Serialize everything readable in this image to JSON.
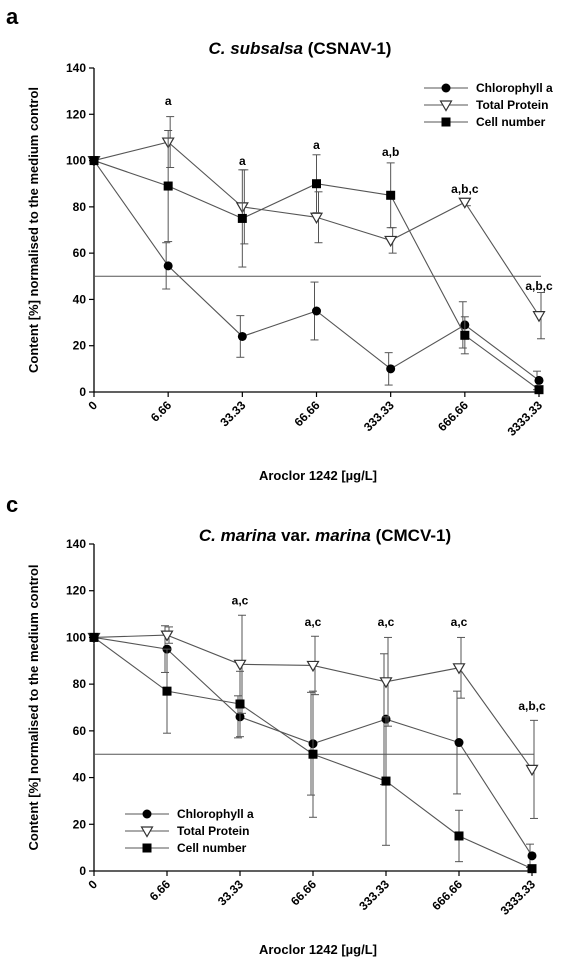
{
  "figure": {
    "panels": [
      {
        "letter": "a",
        "title_italic": "C. subsalsa",
        "title_rest": " (CSNAV-1)",
        "legend_position": "top-right"
      },
      {
        "letter": "c",
        "title_italic": "C. marina",
        "title_mid": " var. ",
        "title_italic2": "marina",
        "title_rest": " (CMCV-1)",
        "legend_position": "bottom-left"
      }
    ]
  },
  "chart_data": [
    {
      "type": "line",
      "title": "C. subsalsa (CSNAV-1)",
      "xlabel": "Aroclor 1242 [µg/L]",
      "ylabel": "Content [%] normalised to the medium control",
      "categories": [
        "0",
        "6.66",
        "33.33",
        "66.66",
        "333.33",
        "666.66",
        "3333.33"
      ],
      "ylim": [
        0,
        140
      ],
      "yticks": [
        0,
        20,
        40,
        60,
        80,
        100,
        120,
        140
      ],
      "reference_line": 50,
      "grid": false,
      "legend": "top-right",
      "series": [
        {
          "name": "Chlorophyll a",
          "marker": "circle",
          "values": [
            100,
            54.5,
            24,
            35,
            10,
            29,
            5
          ],
          "errors": [
            0,
            10,
            9,
            12.5,
            7,
            10,
            4
          ]
        },
        {
          "name": "Total Protein",
          "marker": "triangle-down-open",
          "values": [
            100,
            108,
            80,
            75.5,
            65.5,
            82,
            33
          ],
          "errors": [
            0,
            11,
            16,
            11,
            5.5,
            1.5,
            10
          ]
        },
        {
          "name": "Cell number",
          "marker": "square",
          "values": [
            100,
            89,
            75,
            90,
            85,
            24.5,
            1
          ],
          "errors": [
            0,
            24,
            21,
            12.5,
            14,
            8,
            1
          ]
        }
      ],
      "annotations": [
        {
          "category": "6.66",
          "text": "a",
          "y": 124
        },
        {
          "category": "33.33",
          "text": "a",
          "y": 98
        },
        {
          "category": "66.66",
          "text": "a",
          "y": 105
        },
        {
          "category": "333.33",
          "text": "a,b",
          "y": 102
        },
        {
          "category": "666.66",
          "text": "a,b,c",
          "y": 86
        },
        {
          "category": "3333.33",
          "text": "a,b,c",
          "y": 44
        }
      ]
    },
    {
      "type": "line",
      "title": "C. marina var. marina (CMCV-1)",
      "xlabel": "Aroclor 1242 [µg/L]",
      "ylabel": "Content [%] normalised to the medium control",
      "categories": [
        "0",
        "6.66",
        "33.33",
        "66.66",
        "333.33",
        "666.66",
        "3333.33"
      ],
      "ylim": [
        0,
        140
      ],
      "yticks": [
        0,
        20,
        40,
        60,
        80,
        100,
        120,
        140
      ],
      "reference_line": 50,
      "grid": false,
      "legend": "bottom-left",
      "series": [
        {
          "name": "Chlorophyll a",
          "marker": "circle",
          "values": [
            100,
            95,
            66,
            54.5,
            65,
            55,
            6.5
          ],
          "errors": [
            0,
            10,
            9,
            22,
            28,
            22,
            5
          ]
        },
        {
          "name": "Total Protein",
          "marker": "triangle-down-open",
          "values": [
            100,
            101,
            88.5,
            88,
            81,
            87,
            43.5
          ],
          "errors": [
            0,
            3.5,
            21,
            12.5,
            19,
            13,
            21
          ]
        },
        {
          "name": "Cell number",
          "marker": "square",
          "values": [
            100,
            77,
            71.5,
            50,
            38.5,
            15,
            1
          ],
          "errors": [
            0,
            18,
            14,
            27,
            27.5,
            11,
            1
          ]
        }
      ],
      "annotations": [
        {
          "category": "33.33",
          "text": "a,c",
          "y": 114
        },
        {
          "category": "66.66",
          "text": "a,c",
          "y": 105
        },
        {
          "category": "333.33",
          "text": "a,c",
          "y": 105
        },
        {
          "category": "666.66",
          "text": "a,c",
          "y": 105
        },
        {
          "category": "3333.33",
          "text": "a,b,c",
          "y": 69
        }
      ]
    }
  ]
}
